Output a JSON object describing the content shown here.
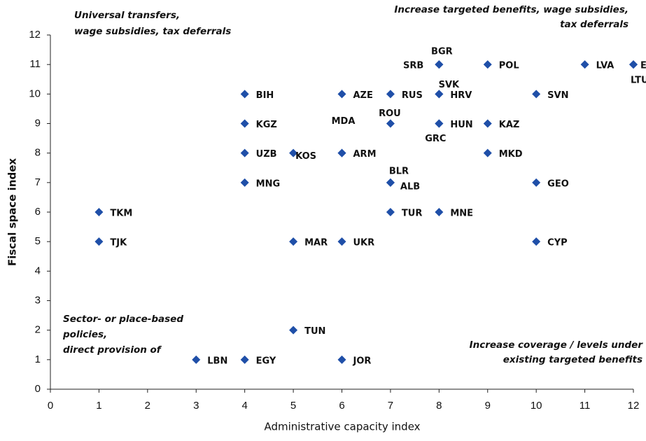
{
  "chart_data": {
    "type": "scatter",
    "xlabel": "Administrative capacity index",
    "ylabel": "Fiscal space index",
    "xlim": [
      0,
      12
    ],
    "ylim": [
      0,
      12
    ],
    "xticks": [
      0,
      1,
      2,
      3,
      4,
      5,
      6,
      7,
      8,
      9,
      10,
      11,
      12
    ],
    "yticks": [
      0,
      1,
      2,
      3,
      4,
      5,
      6,
      7,
      8,
      9,
      10,
      11,
      12
    ],
    "color": "#1f4fa8",
    "labels": [
      "TKM",
      "TJK",
      "LBN",
      "BIH",
      "KGZ",
      "UZB",
      "MNG",
      "EGY",
      "KOS",
      "MAR",
      "TUN",
      "AZE",
      "MDA",
      "ARM",
      "UKR",
      "JOR",
      "RUS",
      "ROU",
      "BLR",
      "ALB",
      "TUR",
      "SRB",
      "BGR",
      "SVK",
      "HRV",
      "HUN",
      "GRC",
      "MNE",
      "POL",
      "KAZ",
      "MKD",
      "SVN",
      "GEO",
      "CYP",
      "LVA",
      "E",
      "LTU"
    ],
    "x": [
      1,
      1,
      3,
      4,
      4,
      4,
      4,
      4,
      5,
      5,
      5,
      6,
      6,
      6,
      6,
      6,
      7,
      7,
      7,
      7,
      7,
      8,
      8,
      8,
      8,
      8,
      8,
      8,
      9,
      9,
      9,
      10,
      10,
      10,
      11,
      12,
      12
    ],
    "y": [
      6,
      5,
      1,
      10,
      9,
      8,
      7,
      1,
      8,
      5,
      2,
      10,
      8,
      8,
      5,
      1,
      10,
      9,
      7,
      7,
      6,
      11,
      11,
      10,
      10,
      9,
      9,
      6,
      11,
      9,
      8,
      10,
      7,
      5,
      11,
      11,
      11
    ],
    "annotations": [
      [
        "Universal transfers,",
        "wage subsidies, tax deferrals"
      ],
      [
        "Increase targeted benefits, wage subsidies,",
        "tax deferrals"
      ],
      [
        "Sector- or place-based",
        "policies,",
        "direct provision of"
      ],
      [
        "Increase coverage / levels under",
        "existing targeted benefits"
      ]
    ]
  }
}
